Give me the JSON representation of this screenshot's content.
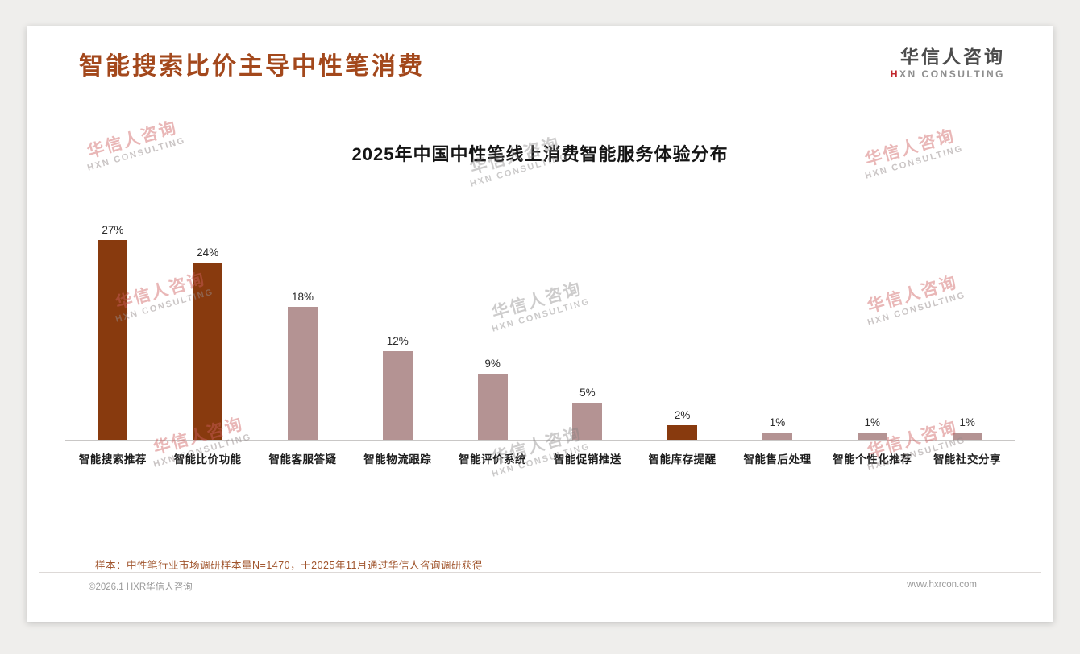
{
  "header": {
    "title": "智能搜索比价主导中性笔消费",
    "logo_cn": "华信人咨询",
    "logo_en_first": "H",
    "logo_en_rest": "XN CONSULTING"
  },
  "watermark": {
    "cn": "华信人咨询",
    "en": "HXN CONSULTING"
  },
  "chart_data": {
    "type": "bar",
    "title": "2025年中国中性笔线上消费智能服务体验分布",
    "categories": [
      "智能搜索推荐",
      "智能比价功能",
      "智能客服答疑",
      "智能物流跟踪",
      "智能评价系统",
      "智能促销推送",
      "智能库存提醒",
      "智能售后处理",
      "智能个性化推荐",
      "智能社交分享"
    ],
    "values": [
      27,
      24,
      18,
      12,
      9,
      5,
      2,
      1,
      1,
      1
    ],
    "value_labels": [
      "27%",
      "24%",
      "18%",
      "12%",
      "9%",
      "5%",
      "2%",
      "1%",
      "1%",
      "1%"
    ],
    "unit": "%",
    "xlabel": "",
    "ylabel": "",
    "ylim": [
      0,
      28
    ],
    "grid": false,
    "legend": false,
    "colors": {
      "highlight": "#883a0e",
      "normal": "#b49393"
    },
    "bar_color_keys": [
      "highlight",
      "highlight",
      "normal",
      "normal",
      "normal",
      "normal",
      "highlight",
      "normal",
      "normal",
      "normal"
    ]
  },
  "footnote": "样本：中性笔行业市场调研样本量N=1470，于2025年11月通过华信人咨询调研获得",
  "footer": {
    "left": "©2026.1 HXR华信人咨询",
    "right": "www.hxrcon.com"
  }
}
